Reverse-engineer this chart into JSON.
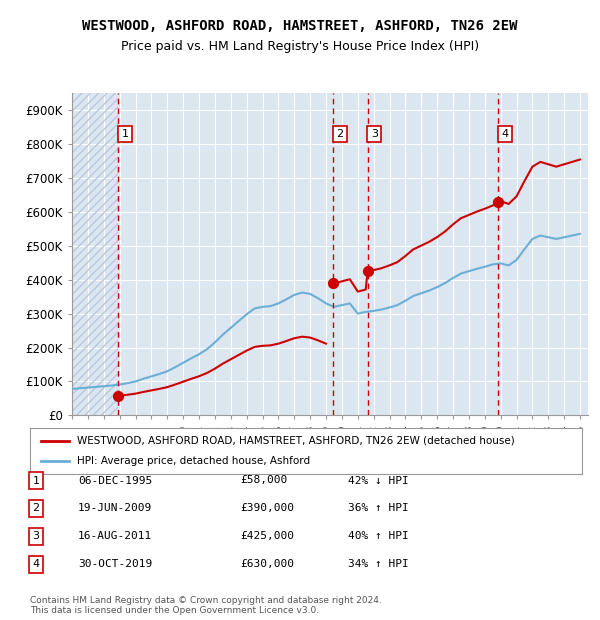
{
  "title": "WESTWOOD, ASHFORD ROAD, HAMSTREET, ASHFORD, TN26 2EW",
  "subtitle": "Price paid vs. HM Land Registry's House Price Index (HPI)",
  "ylabel": "",
  "xlim_start": 1993.0,
  "xlim_end": 2025.5,
  "ylim": [
    0,
    950000
  ],
  "background_color": "#ffffff",
  "plot_bg_color": "#dce6f1",
  "hatch_color": "#b8c8dc",
  "grid_color": "#ffffff",
  "sale_color": "#cc0000",
  "hpi_color": "#6baed6",
  "dashed_line_color": "#cc0000",
  "transaction_dates": [
    1995.92,
    2009.46,
    2011.62,
    2019.83
  ],
  "transaction_prices": [
    58000,
    390000,
    425000,
    630000
  ],
  "transaction_labels": [
    "1",
    "2",
    "3",
    "4"
  ],
  "sale_line_segments": [
    [
      [
        1995.92,
        58000
      ],
      [
        2009.46,
        390000
      ]
    ],
    [
      [
        2009.46,
        390000
      ],
      [
        2011.62,
        425000
      ]
    ],
    [
      [
        2011.62,
        425000
      ],
      [
        2019.83,
        630000
      ]
    ]
  ],
  "legend_sale_label": "WESTWOOD, ASHFORD ROAD, HAMSTREET, ASHFORD, TN26 2EW (detached house)",
  "legend_hpi_label": "HPI: Average price, detached house, Ashford",
  "table_data": [
    [
      "1",
      "06-DEC-1995",
      "£58,000",
      "42% ↓ HPI"
    ],
    [
      "2",
      "19-JUN-2009",
      "£390,000",
      "36% ↑ HPI"
    ],
    [
      "3",
      "16-AUG-2011",
      "£425,000",
      "40% ↑ HPI"
    ],
    [
      "4",
      "30-OCT-2019",
      "£630,000",
      "34% ↑ HPI"
    ]
  ],
  "footer_text": "Contains HM Land Registry data © Crown copyright and database right 2024.\nThis data is licensed under the Open Government Licence v3.0.",
  "ytick_labels": [
    "£0",
    "£100K",
    "£200K",
    "£300K",
    "£400K",
    "£500K",
    "£600K",
    "£700K",
    "£800K",
    "£900K"
  ],
  "ytick_values": [
    0,
    100000,
    200000,
    300000,
    400000,
    500000,
    600000,
    700000,
    800000,
    900000
  ]
}
